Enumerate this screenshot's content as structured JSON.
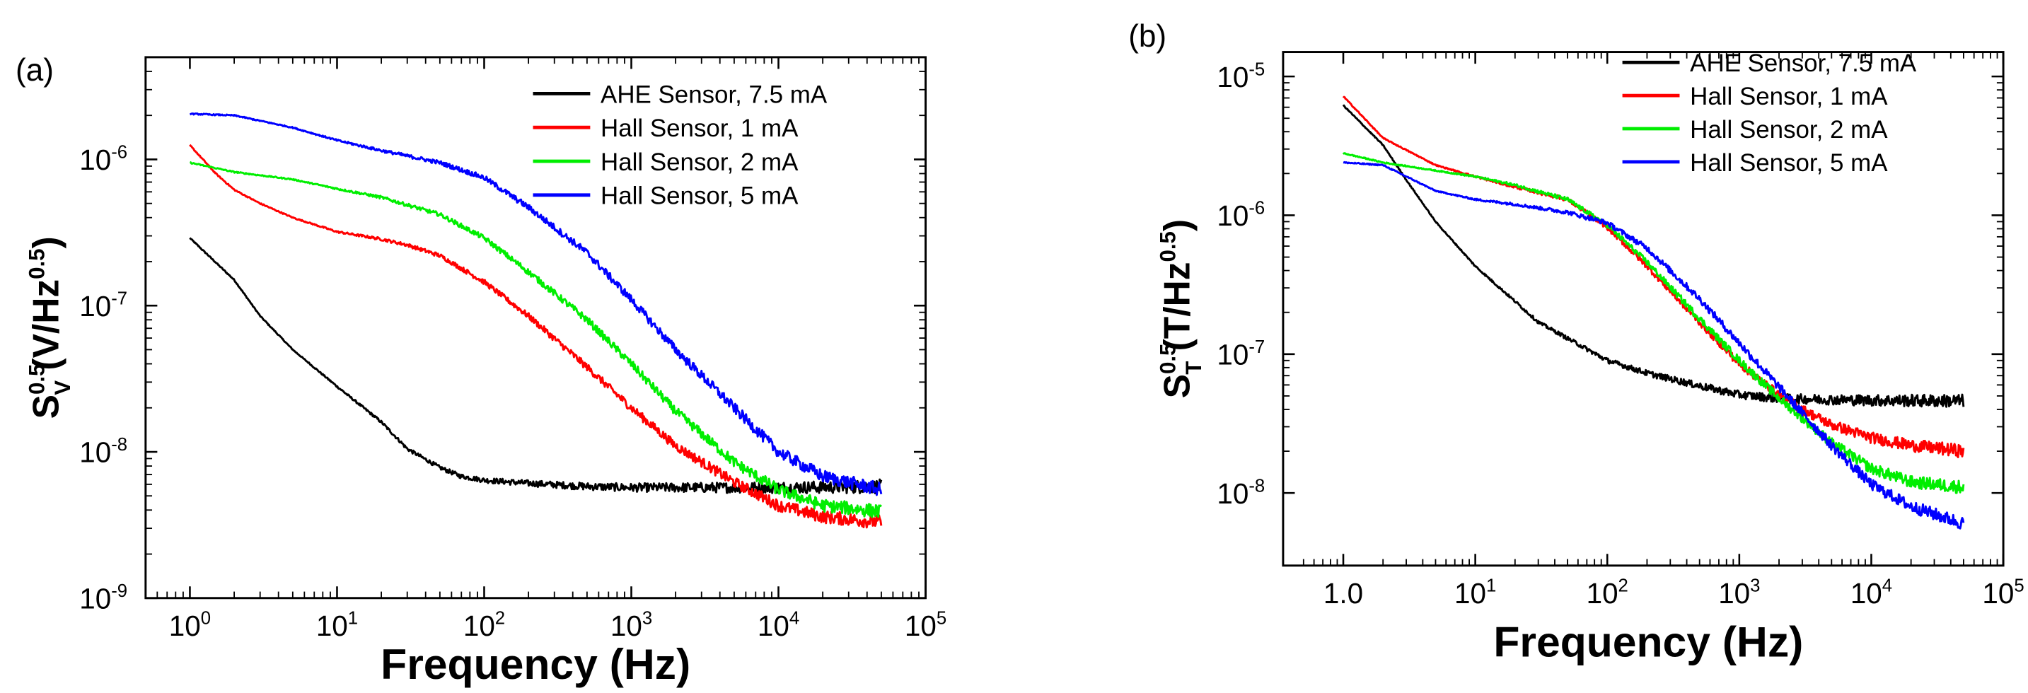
{
  "chart_data": [
    {
      "panel_label": "(a)",
      "type": "line",
      "xscale": "log",
      "yscale": "log",
      "xlim": [
        0.5,
        100000
      ],
      "ylim": [
        1e-09,
        5e-06
      ],
      "xlabel": "Frequency (Hz)",
      "ylabel": {
        "symbol": "S",
        "sup": "0.5",
        "sub": "V",
        "unit_open": " (V/Hz",
        "unit_sup": "0.5",
        "unit_close": ")"
      },
      "x_ticks": [
        1,
        10,
        100,
        1000,
        10000,
        100000
      ],
      "x_tick_labels": [
        {
          "base": "10",
          "exp": "0"
        },
        {
          "base": "10",
          "exp": "1"
        },
        {
          "base": "10",
          "exp": "2"
        },
        {
          "base": "10",
          "exp": "3"
        },
        {
          "base": "10",
          "exp": "4"
        },
        {
          "base": "10",
          "exp": "5"
        }
      ],
      "y_ticks": [
        1e-09,
        1e-08,
        1e-07,
        1e-06
      ],
      "y_tick_labels": [
        {
          "base": "10",
          "exp": "-9"
        },
        {
          "base": "10",
          "exp": "-8"
        },
        {
          "base": "10",
          "exp": "-7"
        },
        {
          "base": "10",
          "exp": "-6"
        }
      ],
      "legend_position": "top-right",
      "series": [
        {
          "name": "AHE Sensor, 7.5 mA",
          "color": "#000000",
          "x": [
            1,
            2,
            3,
            5,
            10,
            20,
            30,
            50,
            70,
            100,
            200,
            500,
            1000,
            3000,
            10000,
            50000
          ],
          "y": [
            2.9e-07,
            1.5e-07,
            8.5e-08,
            5e-08,
            2.8e-08,
            1.6e-08,
            1.05e-08,
            7.8e-09,
            6.8e-09,
            6.4e-09,
            6.1e-09,
            5.8e-09,
            5.7e-09,
            5.7e-09,
            5.7e-09,
            5.8e-09
          ]
        },
        {
          "name": "Hall Sensor, 1 mA",
          "color": "#ff0000",
          "x": [
            1,
            1.5,
            2,
            3,
            5,
            10,
            20,
            30,
            50,
            100,
            200,
            500,
            1000,
            2000,
            5000,
            10000,
            20000,
            50000
          ],
          "y": [
            1.25e-06,
            8e-07,
            6.2e-07,
            5e-07,
            4e-07,
            3.2e-07,
            2.85e-07,
            2.6e-07,
            2.2e-07,
            1.45e-07,
            8.5e-08,
            3.8e-08,
            2e-08,
            1.1e-08,
            6.2e-09,
            4.3e-09,
            3.6e-09,
            3.3e-09
          ]
        },
        {
          "name": "Hall Sensor, 2 mA",
          "color": "#00ee00",
          "x": [
            1,
            2,
            5,
            10,
            20,
            50,
            100,
            200,
            500,
            1000,
            2000,
            5000,
            10000,
            20000,
            50000
          ],
          "y": [
            9.5e-07,
            8.2e-07,
            7.3e-07,
            6.3e-07,
            5.5e-07,
            4.2e-07,
            2.9e-07,
            1.7e-07,
            8e-08,
            4e-08,
            1.9e-08,
            8.5e-09,
            5.5e-09,
            4.3e-09,
            3.9e-09
          ]
        },
        {
          "name": "Hall Sensor, 5 mA",
          "color": "#0000ff",
          "x": [
            1,
            2,
            5,
            10,
            20,
            50,
            100,
            200,
            500,
            1000,
            2000,
            5000,
            10000,
            20000,
            50000
          ],
          "y": [
            2.05e-06,
            2e-06,
            1.65e-06,
            1.35e-06,
            1.15e-06,
            9.5e-07,
            7.5e-07,
            4.7e-07,
            2.3e-07,
            1.1e-07,
            5e-08,
            2e-08,
            1e-08,
            6.8e-09,
            5.5e-09
          ]
        }
      ]
    },
    {
      "panel_label": "(b)",
      "type": "line",
      "xscale": "log",
      "yscale": "log",
      "xlim": [
        0.35,
        100000
      ],
      "ylim": [
        3e-09,
        1.5e-05
      ],
      "xlabel": "Frequency (Hz)",
      "ylabel": {
        "symbol": "S",
        "sup": "0.5",
        "sub": "T",
        "unit_open": " (T/Hz",
        "unit_sup": "0.5",
        "unit_close": ")"
      },
      "x_ticks": [
        1,
        10,
        100,
        1000,
        10000,
        100000
      ],
      "x_tick_labels": [
        {
          "base": "1.0",
          "exp": ""
        },
        {
          "base": "10",
          "exp": "1"
        },
        {
          "base": "10",
          "exp": "2"
        },
        {
          "base": "10",
          "exp": "3"
        },
        {
          "base": "10",
          "exp": "4"
        },
        {
          "base": "10",
          "exp": "5"
        }
      ],
      "y_ticks": [
        1e-08,
        1e-07,
        1e-06,
        1e-05
      ],
      "y_tick_labels": [
        {
          "base": "10",
          "exp": "-8"
        },
        {
          "base": "10",
          "exp": "-7"
        },
        {
          "base": "10",
          "exp": "-6"
        },
        {
          "base": "10",
          "exp": "-5"
        }
      ],
      "legend_position": "top-right",
      "series": [
        {
          "name": "AHE Sensor, 7.5 mA",
          "color": "#000000",
          "x": [
            1,
            2,
            3,
            5,
            10,
            20,
            30,
            50,
            100,
            200,
            500,
            1000,
            2000,
            5000,
            10000,
            50000
          ],
          "y": [
            6.2e-06,
            3.2e-06,
            1.8e-06,
            9e-07,
            4.3e-07,
            2.4e-07,
            1.7e-07,
            1.3e-07,
            9e-08,
            7.3e-08,
            5.9e-08,
            5.1e-08,
            4.8e-08,
            4.7e-08,
            4.65e-08,
            4.6e-08
          ]
        },
        {
          "name": "Hall Sensor, 1 mA",
          "color": "#ff0000",
          "x": [
            1,
            2,
            5,
            10,
            20,
            50,
            100,
            200,
            500,
            1000,
            2000,
            3000,
            5000,
            10000,
            20000,
            50000
          ],
          "y": [
            7.2e-06,
            3.6e-06,
            2.3e-06,
            1.9e-06,
            1.6e-06,
            1.3e-06,
            8.2e-07,
            4.3e-07,
            1.7e-07,
            8.5e-08,
            5.1e-08,
            4e-08,
            3.1e-08,
            2.5e-08,
            2.2e-08,
            2e-08
          ]
        },
        {
          "name": "Hall Sensor, 2 mA",
          "color": "#00ee00",
          "x": [
            1,
            2,
            5,
            10,
            20,
            50,
            100,
            200,
            500,
            1000,
            2000,
            5000,
            10000,
            20000,
            50000
          ],
          "y": [
            2.8e-06,
            2.4e-06,
            2.1e-06,
            1.9e-06,
            1.65e-06,
            1.3e-06,
            8.5e-07,
            4.6e-07,
            1.8e-07,
            9e-08,
            4.8e-08,
            2.3e-08,
            1.5e-08,
            1.2e-08,
            1.1e-08
          ]
        },
        {
          "name": "Hall Sensor, 5 mA",
          "color": "#0000ff",
          "x": [
            1,
            2,
            5,
            10,
            20,
            50,
            100,
            200,
            500,
            1000,
            2000,
            5000,
            10000,
            20000,
            50000
          ],
          "y": [
            2.4e-06,
            2.3e-06,
            1.5e-06,
            1.3e-06,
            1.2e-06,
            1.05e-06,
            8.8e-07,
            5.8e-07,
            2.5e-07,
            1.2e-07,
            5.8e-08,
            2.2e-08,
            1.15e-08,
            8e-09,
            6e-09
          ]
        }
      ]
    }
  ]
}
